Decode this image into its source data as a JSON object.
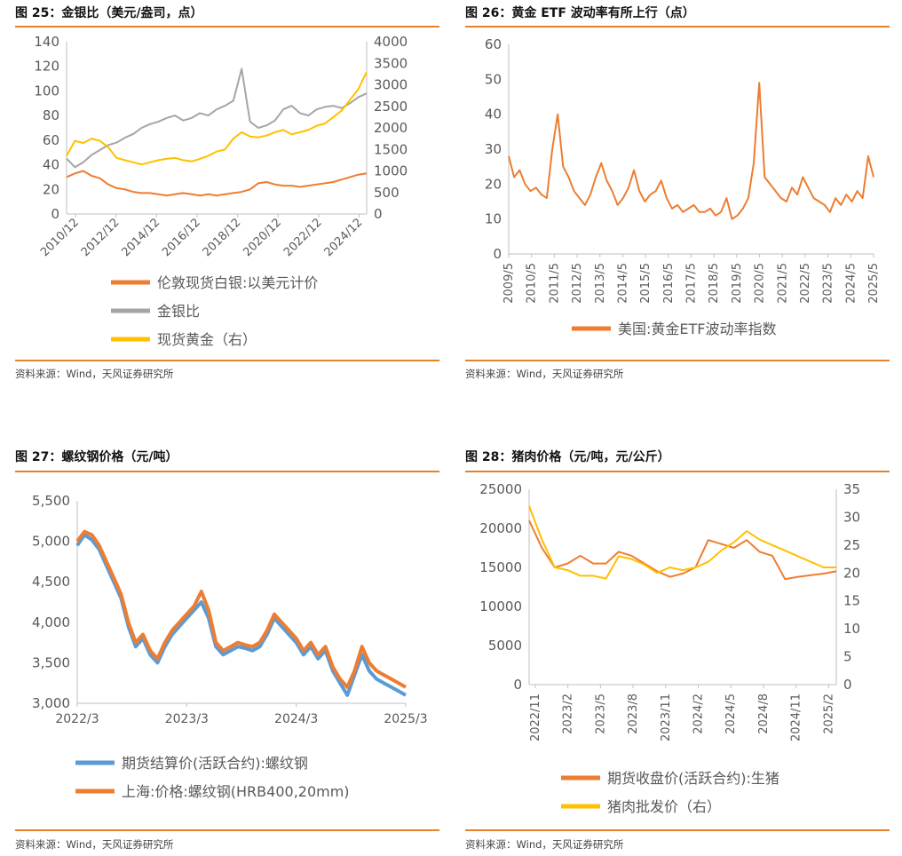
{
  "source_note": "资料来源：Wind，天风证券研究所",
  "panels": [
    {
      "title": "图 25：金银比（美元/盎司，点）"
    },
    {
      "title": "图 26：黄金 ETF 波动率有所上行（点）"
    },
    {
      "title": "图 27：螺纹钢价格（元/吨）"
    },
    {
      "title": "图 28：猪肉价格（元/吨，元/公斤）"
    }
  ],
  "colors": {
    "orange": "#ed7d31",
    "gray": "#a5a5a5",
    "gold": "#ffc000",
    "blue": "#5b9bd5",
    "rule": "#e6832a"
  },
  "chart_data": [
    {
      "type": "line",
      "x_ticks": [
        "2010/12",
        "2012/12",
        "2014/12",
        "2016/12",
        "2018/12",
        "2020/12",
        "2022/12",
        "2024/12"
      ],
      "y_ticks": [
        "0",
        "20",
        "40",
        "60",
        "80",
        "100",
        "120",
        "140"
      ],
      "y2_ticks": [
        "0",
        "500",
        "1000",
        "1500",
        "2000",
        "2500",
        "3000",
        "3500",
        "4000"
      ],
      "ylim": [
        0,
        140
      ],
      "y2lim": [
        0,
        4000
      ],
      "legend_position": "bottom",
      "series": [
        {
          "name": "伦敦现货白银:以美元计价",
          "axis": "left",
          "color": "#ed7d31",
          "values": [
            30,
            33,
            35,
            31,
            29,
            24,
            21,
            20,
            18,
            17,
            17,
            16,
            15,
            16,
            17,
            16,
            15,
            16,
            15,
            16,
            17,
            18,
            20,
            25,
            26,
            24,
            23,
            23,
            22,
            23,
            24,
            25,
            26,
            28,
            30,
            32,
            33
          ]
        },
        {
          "name": "金银比",
          "axis": "left",
          "color": "#a5a5a5",
          "values": [
            45,
            38,
            42,
            48,
            52,
            56,
            58,
            62,
            65,
            70,
            73,
            75,
            78,
            80,
            76,
            78,
            82,
            80,
            85,
            88,
            92,
            118,
            75,
            70,
            72,
            76,
            85,
            88,
            82,
            80,
            85,
            87,
            88,
            86,
            90,
            95,
            98
          ]
        },
        {
          "name": "现货黄金（右）",
          "axis": "right",
          "color": "#ffc000",
          "values": [
            1350,
            1700,
            1650,
            1750,
            1700,
            1550,
            1300,
            1250,
            1200,
            1150,
            1200,
            1250,
            1280,
            1300,
            1250,
            1220,
            1280,
            1350,
            1450,
            1500,
            1750,
            1900,
            1800,
            1780,
            1820,
            1900,
            1950,
            1850,
            1900,
            1950,
            2050,
            2100,
            2250,
            2400,
            2650,
            2900,
            3300
          ]
        }
      ]
    },
    {
      "type": "line",
      "x_ticks": [
        "2009/5",
        "2010/5",
        "2011/5",
        "2012/5",
        "2013/5",
        "2014/5",
        "2015/5",
        "2016/5",
        "2017/5",
        "2018/5",
        "2019/5",
        "2020/5",
        "2021/5",
        "2022/5",
        "2023/5",
        "2024/5",
        "2025/5"
      ],
      "y_ticks": [
        "0",
        "10",
        "20",
        "30",
        "40",
        "50",
        "60"
      ],
      "ylim": [
        0,
        60
      ],
      "legend_position": "bottom",
      "series": [
        {
          "name": "美国:黄金ETF波动率指数",
          "color": "#ed7d31",
          "values": [
            28,
            22,
            24,
            20,
            18,
            19,
            17,
            16,
            30,
            40,
            25,
            22,
            18,
            16,
            14,
            17,
            22,
            26,
            21,
            18,
            14,
            16,
            19,
            24,
            18,
            15,
            17,
            18,
            21,
            16,
            13,
            14,
            12,
            13,
            14,
            12,
            12,
            13,
            11,
            12,
            16,
            10,
            11,
            13,
            16,
            26,
            49,
            22,
            20,
            18,
            16,
            15,
            19,
            17,
            22,
            19,
            16,
            15,
            14,
            12,
            16,
            14,
            17,
            15,
            18,
            16,
            28,
            22
          ]
        }
      ]
    },
    {
      "type": "line",
      "x_ticks": [
        "2022/3",
        "2023/3",
        "2024/3",
        "2025/3"
      ],
      "y_ticks": [
        "3,000",
        "3,500",
        "4,000",
        "4,500",
        "5,000",
        "5,500"
      ],
      "ylim": [
        3000,
        5500
      ],
      "legend_position": "bottom",
      "series": [
        {
          "name": "期货结算价(活跃合约):螺纹钢",
          "color": "#5b9bd5",
          "values": [
            4950,
            5080,
            5020,
            4900,
            4700,
            4500,
            4300,
            3950,
            3700,
            3800,
            3600,
            3500,
            3700,
            3850,
            3950,
            4050,
            4150,
            4250,
            4050,
            3700,
            3600,
            3650,
            3700,
            3680,
            3650,
            3700,
            3850,
            4050,
            3950,
            3850,
            3750,
            3600,
            3700,
            3550,
            3650,
            3400,
            3250,
            3100,
            3350,
            3600,
            3400,
            3300,
            3250,
            3200,
            3150,
            3100
          ]
        },
        {
          "name": "上海:价格:螺纹钢(HRB400,20mm)",
          "color": "#ed7d31",
          "values": [
            5000,
            5120,
            5080,
            4950,
            4750,
            4550,
            4350,
            4000,
            3750,
            3850,
            3650,
            3550,
            3750,
            3900,
            4000,
            4100,
            4200,
            4380,
            4150,
            3750,
            3650,
            3700,
            3750,
            3720,
            3700,
            3750,
            3900,
            4100,
            4000,
            3900,
            3800,
            3650,
            3750,
            3600,
            3700,
            3450,
            3300,
            3200,
            3400,
            3700,
            3500,
            3400,
            3350,
            3300,
            3250,
            3200
          ]
        }
      ]
    },
    {
      "type": "line",
      "x_ticks": [
        "2022/11",
        "2023/2",
        "2023/5",
        "2023/8",
        "2023/11",
        "2024/2",
        "2024/5",
        "2024/8",
        "2024/11",
        "2025/2"
      ],
      "y_ticks": [
        "0",
        "5000",
        "10000",
        "15000",
        "20000",
        "25000"
      ],
      "y2_ticks": [
        "0",
        "5",
        "10",
        "15",
        "20",
        "25",
        "30",
        "35"
      ],
      "ylim": [
        0,
        25000
      ],
      "y2lim": [
        0,
        35
      ],
      "legend_position": "bottom",
      "series": [
        {
          "name": "期货收盘价(活跃合约):生猪",
          "axis": "left",
          "color": "#ed7d31",
          "values": [
            21000,
            17500,
            15000,
            15500,
            16500,
            15500,
            15500,
            17000,
            16500,
            15500,
            14500,
            13800,
            14200,
            15000,
            18500,
            18000,
            17500,
            18500,
            17000,
            16500,
            13500,
            13800,
            14000,
            14200,
            14500
          ]
        },
        {
          "name": "猪肉批发价（右）",
          "axis": "right",
          "color": "#ffc000",
          "values": [
            32,
            26,
            21,
            20.5,
            19.5,
            19.5,
            19,
            23,
            22.5,
            21.5,
            20,
            21,
            20.5,
            21,
            22,
            24,
            25.5,
            27.5,
            26,
            25,
            24,
            23,
            22,
            21,
            21
          ]
        }
      ]
    }
  ]
}
